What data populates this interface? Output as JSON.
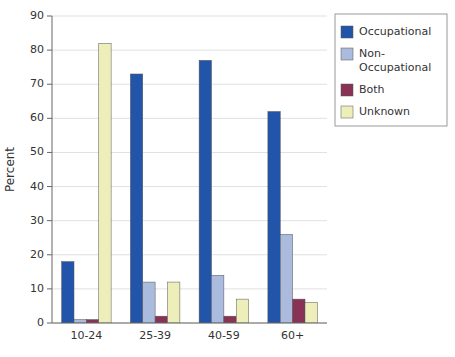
{
  "chart_data": {
    "type": "bar",
    "categories": [
      "10-24",
      "25-39",
      "40-59",
      "60+"
    ],
    "series": [
      {
        "name": "Occupational",
        "color": "#2255AA",
        "values": [
          18,
          73,
          77,
          62
        ]
      },
      {
        "name": "Non-\nOccupational",
        "color": "#AABBDD",
        "values": [
          1,
          12,
          14,
          26
        ]
      },
      {
        "name": "Both",
        "color": "#883355",
        "values": [
          1,
          2,
          2,
          7
        ]
      },
      {
        "name": "Unknown",
        "color": "#EEEEBB",
        "values": [
          82,
          12,
          7,
          6
        ]
      }
    ],
    "ylabel": "Percent",
    "ylim": [
      0,
      90
    ],
    "yticks": [
      0,
      10,
      20,
      30,
      40,
      50,
      60,
      70,
      80,
      90
    ],
    "grid": true,
    "legend": "right"
  }
}
